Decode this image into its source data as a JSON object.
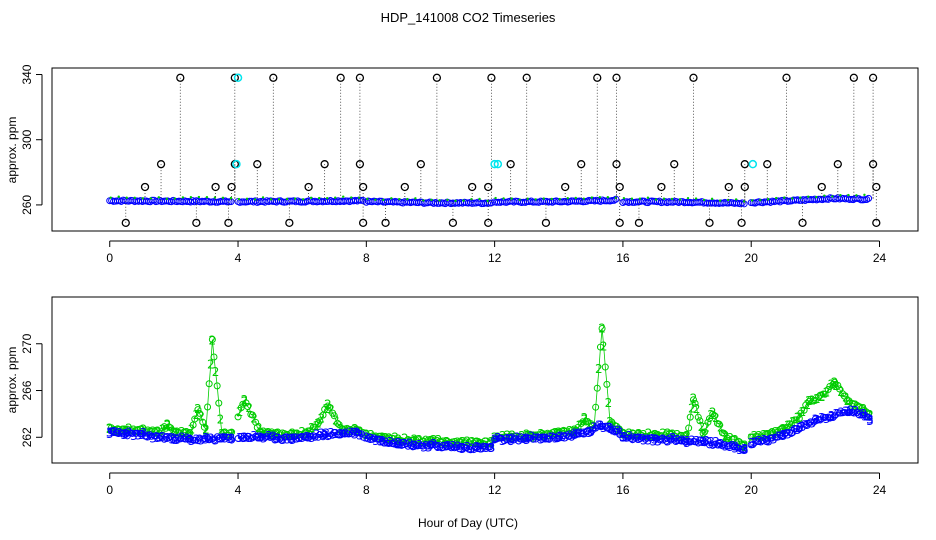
{
  "chart_data": [
    {
      "type": "scatter",
      "title": "HDP_141008  CO2 Timeseries",
      "xlabel": "",
      "ylabel": "approx. ppm",
      "xlim": [
        -1.8,
        25.2
      ],
      "ylim": [
        244,
        344
      ],
      "xticks": [
        0,
        4,
        8,
        12,
        16,
        20,
        24
      ],
      "yticks": [
        260,
        300,
        340
      ],
      "colors": {
        "low": "#0000ff",
        "mid": "#00cc00",
        "outlier": "#000000",
        "flag": "#00e5ee",
        "drop": "#333333"
      },
      "baseline_segments": [
        {
          "x": [
            0,
            2.0,
            3.8
          ],
          "y": [
            262.6,
            262.3,
            262.0
          ]
        },
        {
          "x": [
            4.0,
            6.0,
            7.9
          ],
          "y": [
            262.0,
            262.2,
            262.6
          ]
        },
        {
          "x": [
            8.0,
            10.0,
            11.9
          ],
          "y": [
            262.0,
            261.3,
            261.2
          ]
        },
        {
          "x": [
            12.0,
            14.0,
            15.2,
            15.8
          ],
          "y": [
            261.8,
            262.0,
            262.5,
            263.0
          ]
        },
        {
          "x": [
            16.0,
            18.0,
            19.8
          ],
          "y": [
            262.0,
            261.8,
            260.9
          ]
        },
        {
          "x": [
            20.0,
            21.2,
            22.5,
            23.7
          ],
          "y": [
            261.5,
            262.5,
            264.0,
            263.5
          ]
        }
      ],
      "outliers_high": [
        {
          "x": 2.2,
          "y": 338
        },
        {
          "x": 3.9,
          "y": 338
        },
        {
          "x": 5.1,
          "y": 338
        },
        {
          "x": 7.2,
          "y": 338
        },
        {
          "x": 7.8,
          "y": 338
        },
        {
          "x": 10.2,
          "y": 338
        },
        {
          "x": 11.9,
          "y": 338
        },
        {
          "x": 13.0,
          "y": 338
        },
        {
          "x": 15.2,
          "y": 338
        },
        {
          "x": 15.8,
          "y": 338
        },
        {
          "x": 18.2,
          "y": 338
        },
        {
          "x": 21.1,
          "y": 338
        },
        {
          "x": 23.2,
          "y": 338
        },
        {
          "x": 23.8,
          "y": 338
        }
      ],
      "outliers_mid": [
        {
          "x": 1.6,
          "y": 285
        },
        {
          "x": 3.9,
          "y": 285
        },
        {
          "x": 4.6,
          "y": 285
        },
        {
          "x": 6.7,
          "y": 285
        },
        {
          "x": 7.8,
          "y": 285
        },
        {
          "x": 9.7,
          "y": 285
        },
        {
          "x": 12.5,
          "y": 285
        },
        {
          "x": 14.7,
          "y": 285
        },
        {
          "x": 15.8,
          "y": 285
        },
        {
          "x": 17.6,
          "y": 285
        },
        {
          "x": 19.8,
          "y": 285
        },
        {
          "x": 20.5,
          "y": 285
        },
        {
          "x": 22.7,
          "y": 285
        },
        {
          "x": 23.8,
          "y": 285
        }
      ],
      "outliers_low": [
        {
          "x": 1.1,
          "y": 271
        },
        {
          "x": 3.3,
          "y": 271
        },
        {
          "x": 3.8,
          "y": 271
        },
        {
          "x": 6.2,
          "y": 271
        },
        {
          "x": 7.9,
          "y": 271
        },
        {
          "x": 9.2,
          "y": 271
        },
        {
          "x": 11.3,
          "y": 271
        },
        {
          "x": 11.8,
          "y": 271
        },
        {
          "x": 14.2,
          "y": 271
        },
        {
          "x": 15.9,
          "y": 271
        },
        {
          "x": 17.2,
          "y": 271
        },
        {
          "x": 19.3,
          "y": 271
        },
        {
          "x": 19.8,
          "y": 271
        },
        {
          "x": 22.2,
          "y": 271
        },
        {
          "x": 23.9,
          "y": 271
        }
      ],
      "outliers_bottom": [
        {
          "x": 0.5,
          "y": 249
        },
        {
          "x": 2.7,
          "y": 249
        },
        {
          "x": 3.7,
          "y": 249
        },
        {
          "x": 5.6,
          "y": 249
        },
        {
          "x": 7.9,
          "y": 249
        },
        {
          "x": 8.6,
          "y": 249
        },
        {
          "x": 10.7,
          "y": 249
        },
        {
          "x": 11.8,
          "y": 249
        },
        {
          "x": 13.6,
          "y": 249
        },
        {
          "x": 15.9,
          "y": 249
        },
        {
          "x": 16.5,
          "y": 249
        },
        {
          "x": 18.7,
          "y": 249
        },
        {
          "x": 19.7,
          "y": 249
        },
        {
          "x": 21.6,
          "y": 249
        },
        {
          "x": 23.9,
          "y": 249
        }
      ],
      "flagged": [
        {
          "x": 3.95,
          "y": 285
        },
        {
          "x": 4.0,
          "y": 338
        },
        {
          "x": 12.0,
          "y": 285
        },
        {
          "x": 12.1,
          "y": 285
        },
        {
          "x": 20.05,
          "y": 285
        }
      ]
    },
    {
      "type": "scatter",
      "title": "",
      "xlabel": "Hour of Day (UTC)",
      "ylabel": "approx. ppm",
      "xlim": [
        -1.8,
        25.2
      ],
      "ylim": [
        259.8,
        274.0
      ],
      "xticks": [
        0,
        4,
        8,
        12,
        16,
        20,
        24
      ],
      "yticks": [
        262,
        266,
        270
      ],
      "series_low": {
        "name": "3",
        "x": [
          0,
          0.5,
          1.0,
          1.5,
          2.0,
          2.5,
          3.0,
          3.5,
          3.8,
          4.2,
          4.7,
          5.2,
          5.7,
          6.2,
          6.7,
          7.2,
          7.7,
          8.0,
          8.5,
          9.0,
          9.5,
          10.0,
          10.5,
          11.0,
          11.5,
          11.9,
          12.0,
          12.5,
          13.0,
          13.5,
          14.0,
          14.5,
          15.0,
          15.3,
          15.6,
          15.9,
          16.0,
          16.5,
          17.0,
          17.5,
          18.0,
          18.5,
          19.0,
          19.5,
          19.8,
          20.0,
          20.5,
          21.0,
          21.5,
          22.0,
          22.5,
          23.0,
          23.5,
          23.7
        ],
        "y": [
          262.4,
          262.3,
          262.2,
          262.0,
          261.9,
          261.8,
          261.8,
          261.9,
          261.9,
          262.0,
          262.0,
          261.9,
          261.9,
          262.0,
          262.2,
          262.3,
          262.4,
          262.0,
          261.7,
          261.5,
          261.3,
          261.3,
          261.2,
          261.1,
          261.1,
          261.1,
          261.8,
          261.8,
          261.9,
          261.9,
          262.0,
          262.2,
          262.5,
          263.0,
          262.8,
          262.4,
          262.0,
          261.9,
          261.8,
          261.8,
          261.7,
          261.6,
          261.4,
          261.2,
          260.9,
          261.5,
          261.7,
          262.2,
          262.8,
          263.5,
          263.8,
          264.2,
          264.0,
          263.5
        ]
      },
      "series_mid": {
        "name": "2",
        "x": [
          0,
          0.5,
          1.0,
          1.5,
          1.8,
          2.0,
          2.5,
          2.75,
          3.0,
          3.2,
          3.5,
          3.8,
          4.2,
          4.7,
          5.2,
          5.7,
          6.2,
          6.5,
          6.8,
          7.2,
          7.7,
          8.0,
          8.5,
          9.0,
          9.5,
          10.0,
          10.5,
          11.0,
          11.5,
          11.9,
          12.0,
          12.5,
          13.0,
          13.5,
          14.0,
          14.5,
          14.8,
          15.1,
          15.35,
          15.6,
          15.9,
          16.0,
          16.5,
          17.0,
          17.5,
          18.0,
          18.2,
          18.5,
          18.8,
          19.2,
          19.8,
          20.0,
          20.5,
          21.0,
          21.5,
          21.8,
          22.2,
          22.6,
          23.0,
          23.5,
          23.7
        ],
        "y": [
          262.7,
          262.6,
          262.6,
          262.4,
          263.0,
          262.4,
          262.3,
          264.4,
          262.6,
          270.3,
          262.3,
          262.3,
          265.2,
          262.4,
          262.3,
          262.2,
          262.4,
          263.2,
          264.8,
          262.7,
          262.6,
          262.2,
          262.0,
          261.8,
          261.7,
          261.7,
          261.6,
          261.6,
          261.5,
          261.6,
          262.0,
          262.0,
          262.1,
          262.2,
          262.4,
          262.6,
          263.5,
          262.9,
          271.3,
          263.3,
          262.6,
          262.3,
          262.2,
          262.2,
          262.2,
          262.1,
          265.3,
          262.3,
          264.1,
          262.0,
          261.3,
          261.9,
          262.2,
          262.7,
          263.7,
          265.1,
          265.5,
          266.7,
          265.1,
          264.4,
          263.9
        ]
      }
    }
  ]
}
